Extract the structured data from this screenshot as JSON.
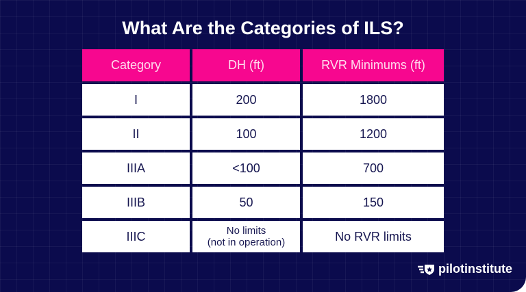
{
  "title": "What Are the Categories of ILS?",
  "table": {
    "headers": [
      "Category",
      "DH (ft)",
      "RVR Minimums (ft)"
    ],
    "rows": [
      [
        "I",
        "200",
        "1800"
      ],
      [
        "II",
        "100",
        "1200"
      ],
      [
        "IIIA",
        "<100",
        "700"
      ],
      [
        "IIIB",
        "50",
        "150"
      ],
      [
        "IIIC",
        "No limits\n(not in operation)",
        "No RVR limits"
      ]
    ]
  },
  "logo": {
    "text": "pilotinstitute",
    "icon": "winged-shield-star-icon"
  },
  "colors": {
    "background": "#0b0b4d",
    "header": "#f7078f",
    "cell": "#ffffff",
    "text": "#161650"
  }
}
